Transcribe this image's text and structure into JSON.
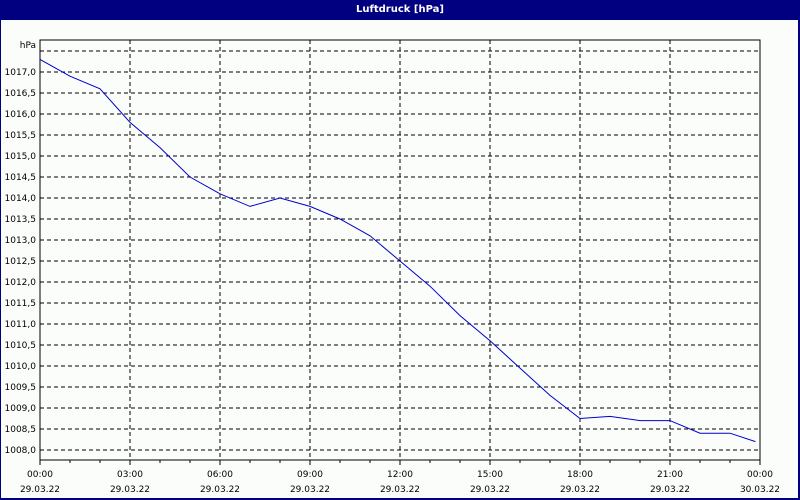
{
  "window": {
    "title": "Luftdruck [hPa]"
  },
  "chart_data": {
    "type": "line",
    "title": "Luftdruck [hPa]",
    "ylabel": "hPa",
    "xlabel": "",
    "ylim": [
      1007.8,
      1017.7
    ],
    "grid": true,
    "y_ticks": [
      "1017,0",
      "1016,5",
      "1016,0",
      "1015,5",
      "1015,0",
      "1014,5",
      "1014,0",
      "1013,5",
      "1013,0",
      "1012,5",
      "1012,0",
      "1011,5",
      "1011,0",
      "1010,5",
      "1010,0",
      "1009,5",
      "1009,0",
      "1008,5",
      "1008,0"
    ],
    "x_ticks": [
      {
        "time": "00:00",
        "date": "29.03.22"
      },
      {
        "time": "03:00",
        "date": "29.03.22"
      },
      {
        "time": "06:00",
        "date": "29.03.22"
      },
      {
        "time": "09:00",
        "date": "29.03.22"
      },
      {
        "time": "12:00",
        "date": "29.03.22"
      },
      {
        "time": "15:00",
        "date": "29.03.22"
      },
      {
        "time": "18:00",
        "date": "29.03.22"
      },
      {
        "time": "21:00",
        "date": "29.03.22"
      },
      {
        "time": "00:00",
        "date": "30.03.22"
      }
    ],
    "series": [
      {
        "name": "Luftdruck",
        "color": "#0000cc",
        "x_hours": [
          0,
          1,
          2,
          3,
          4,
          5,
          6,
          7,
          8,
          9,
          10,
          11,
          12,
          13,
          14,
          15,
          16,
          17,
          18,
          19,
          20,
          21,
          22,
          23,
          24
        ],
        "values": [
          1017.3,
          1016.9,
          1016.6,
          1015.8,
          1015.2,
          1014.5,
          1014.1,
          1013.8,
          1014.0,
          1013.8,
          1013.5,
          1013.1,
          1012.5,
          1011.9,
          1011.2,
          1010.6,
          1009.95,
          1009.3,
          1008.75,
          1008.8,
          1008.7,
          1008.7,
          1008.4,
          1008.4,
          1008.2
        ]
      }
    ]
  }
}
